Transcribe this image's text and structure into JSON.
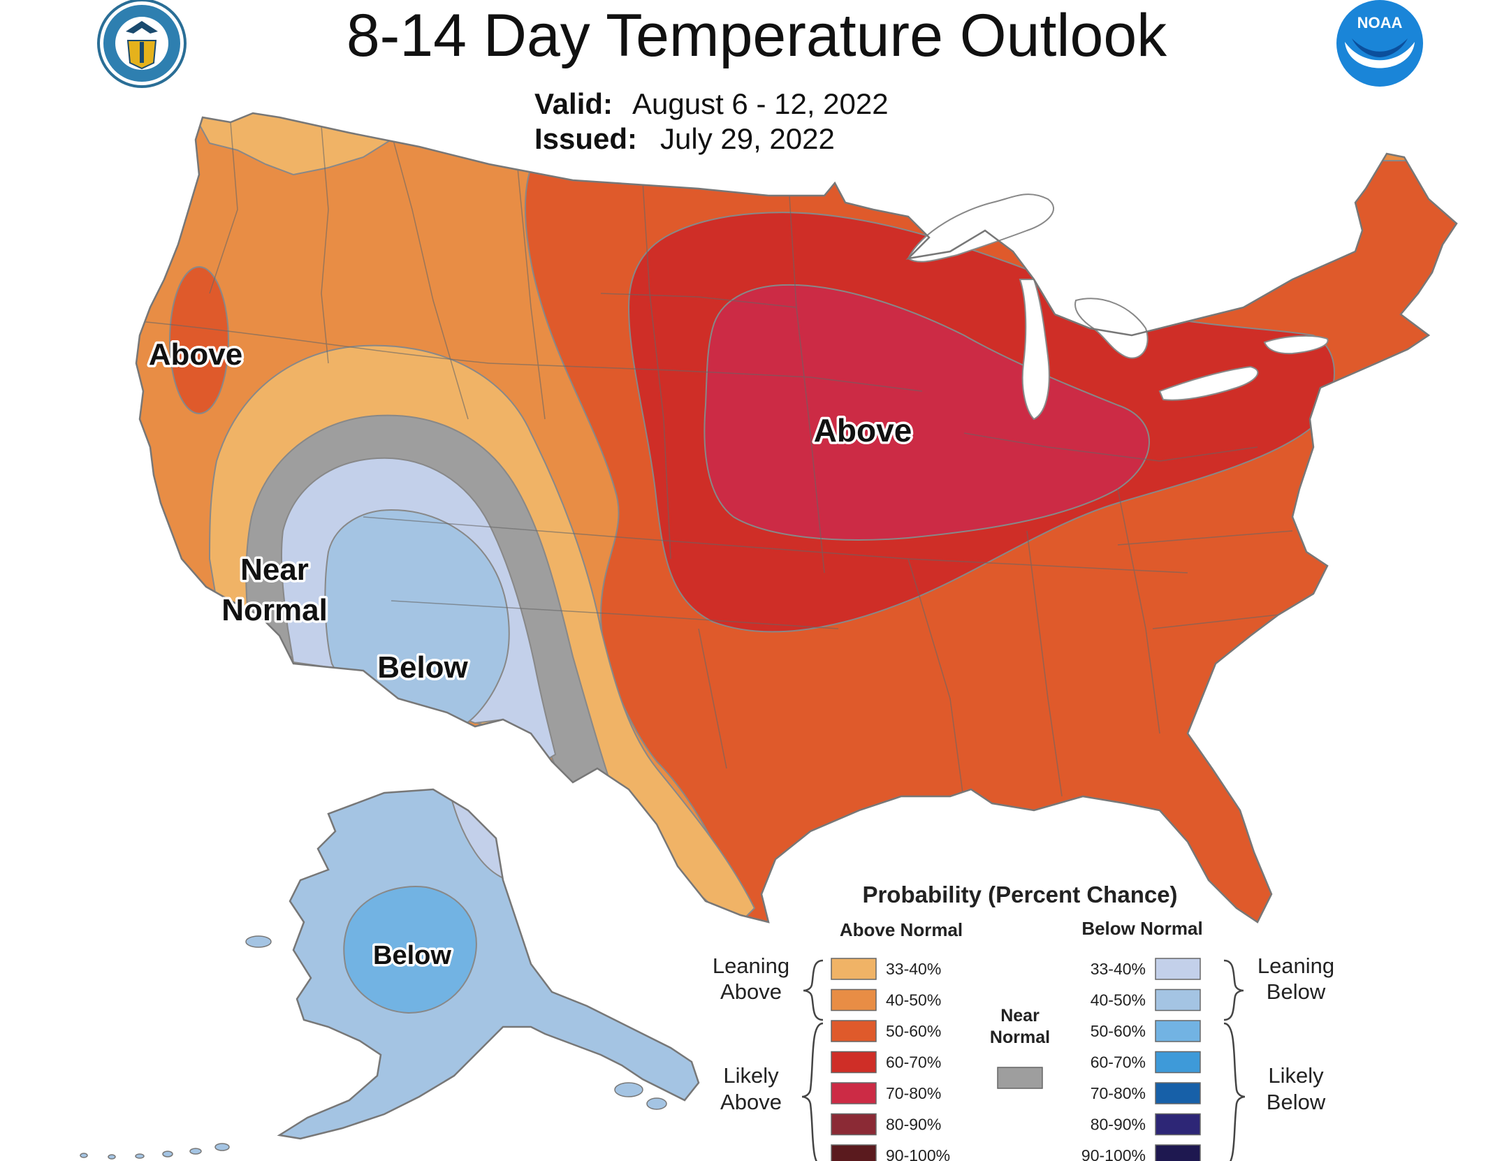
{
  "header": {
    "title": "8-14 Day Temperature Outlook",
    "valid_label": "Valid:",
    "valid_value": "August 6 - 12, 2022",
    "issued_label": "Issued:",
    "issued_value": "July 29, 2022"
  },
  "logos": {
    "left": "doc-seal-icon",
    "right": "noaa-logo-icon",
    "right_text": "NOAA"
  },
  "map_labels": {
    "west_coast": "Above",
    "midwest": "Above",
    "near_normal_line1": "Near",
    "near_normal_line2": "Normal",
    "southwest": "Below",
    "alaska": "Below"
  },
  "colors": {
    "above_33_40": "#f0b366",
    "above_40_50": "#e88d45",
    "above_50_60": "#df5a2b",
    "above_60_70": "#cf2e27",
    "above_70_80": "#cc2b45",
    "above_80_90": "#8b2a35",
    "above_90_100": "#5a1a1e",
    "near_normal": "#9e9e9e",
    "below_33_40": "#c3d0ea",
    "below_40_50": "#a4c4e3",
    "below_50_60": "#72b3e3",
    "below_60_70": "#3e9ad9",
    "below_70_80": "#1760a8",
    "below_80_90": "#2d2676",
    "below_90_100": "#1e1850"
  },
  "legend": {
    "title": "Probability (Percent Chance)",
    "above_header": "Above Normal",
    "below_header": "Below Normal",
    "near_normal_line1": "Near",
    "near_normal_line2": "Normal",
    "leaning_above_1": "Leaning",
    "leaning_above_2": "Above",
    "likely_above_1": "Likely",
    "likely_above_2": "Above",
    "leaning_below_1": "Leaning",
    "leaning_below_2": "Below",
    "likely_below_1": "Likely",
    "likely_below_2": "Below",
    "ranges": [
      "33-40%",
      "40-50%",
      "50-60%",
      "60-70%",
      "70-80%",
      "80-90%",
      "90-100%"
    ]
  }
}
